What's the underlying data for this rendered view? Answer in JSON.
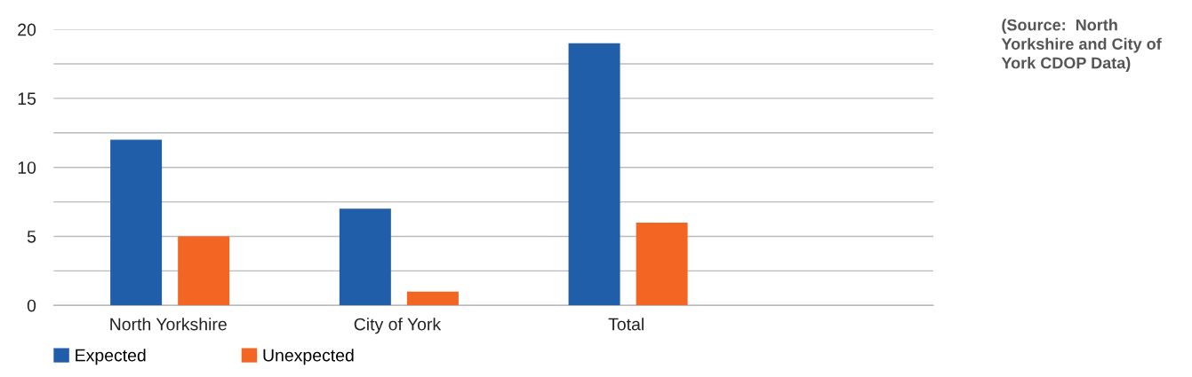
{
  "chart_data": {
    "type": "bar",
    "categories": [
      "North Yorkshire",
      "City of York",
      "Total"
    ],
    "series": [
      {
        "name": "Expected",
        "color": "#205ea9",
        "values": [
          12,
          7,
          19
        ]
      },
      {
        "name": "Unexpected",
        "color": "#f26522",
        "values": [
          5,
          1,
          6
        ]
      }
    ],
    "ylim": [
      0,
      20
    ],
    "yticks": [
      0,
      {
        "value": 2.5,
        "label": null
      },
      5,
      {
        "value": 7.5,
        "label": null
      },
      10,
      {
        "value": 12.5,
        "label": null
      },
      15,
      {
        "value": 17.5,
        "label": null
      },
      20
    ],
    "grid": "y",
    "legend": "bottom left",
    "annotations": [
      "(Source:  North Yorkshire and City of York CDOP Data)"
    ]
  }
}
